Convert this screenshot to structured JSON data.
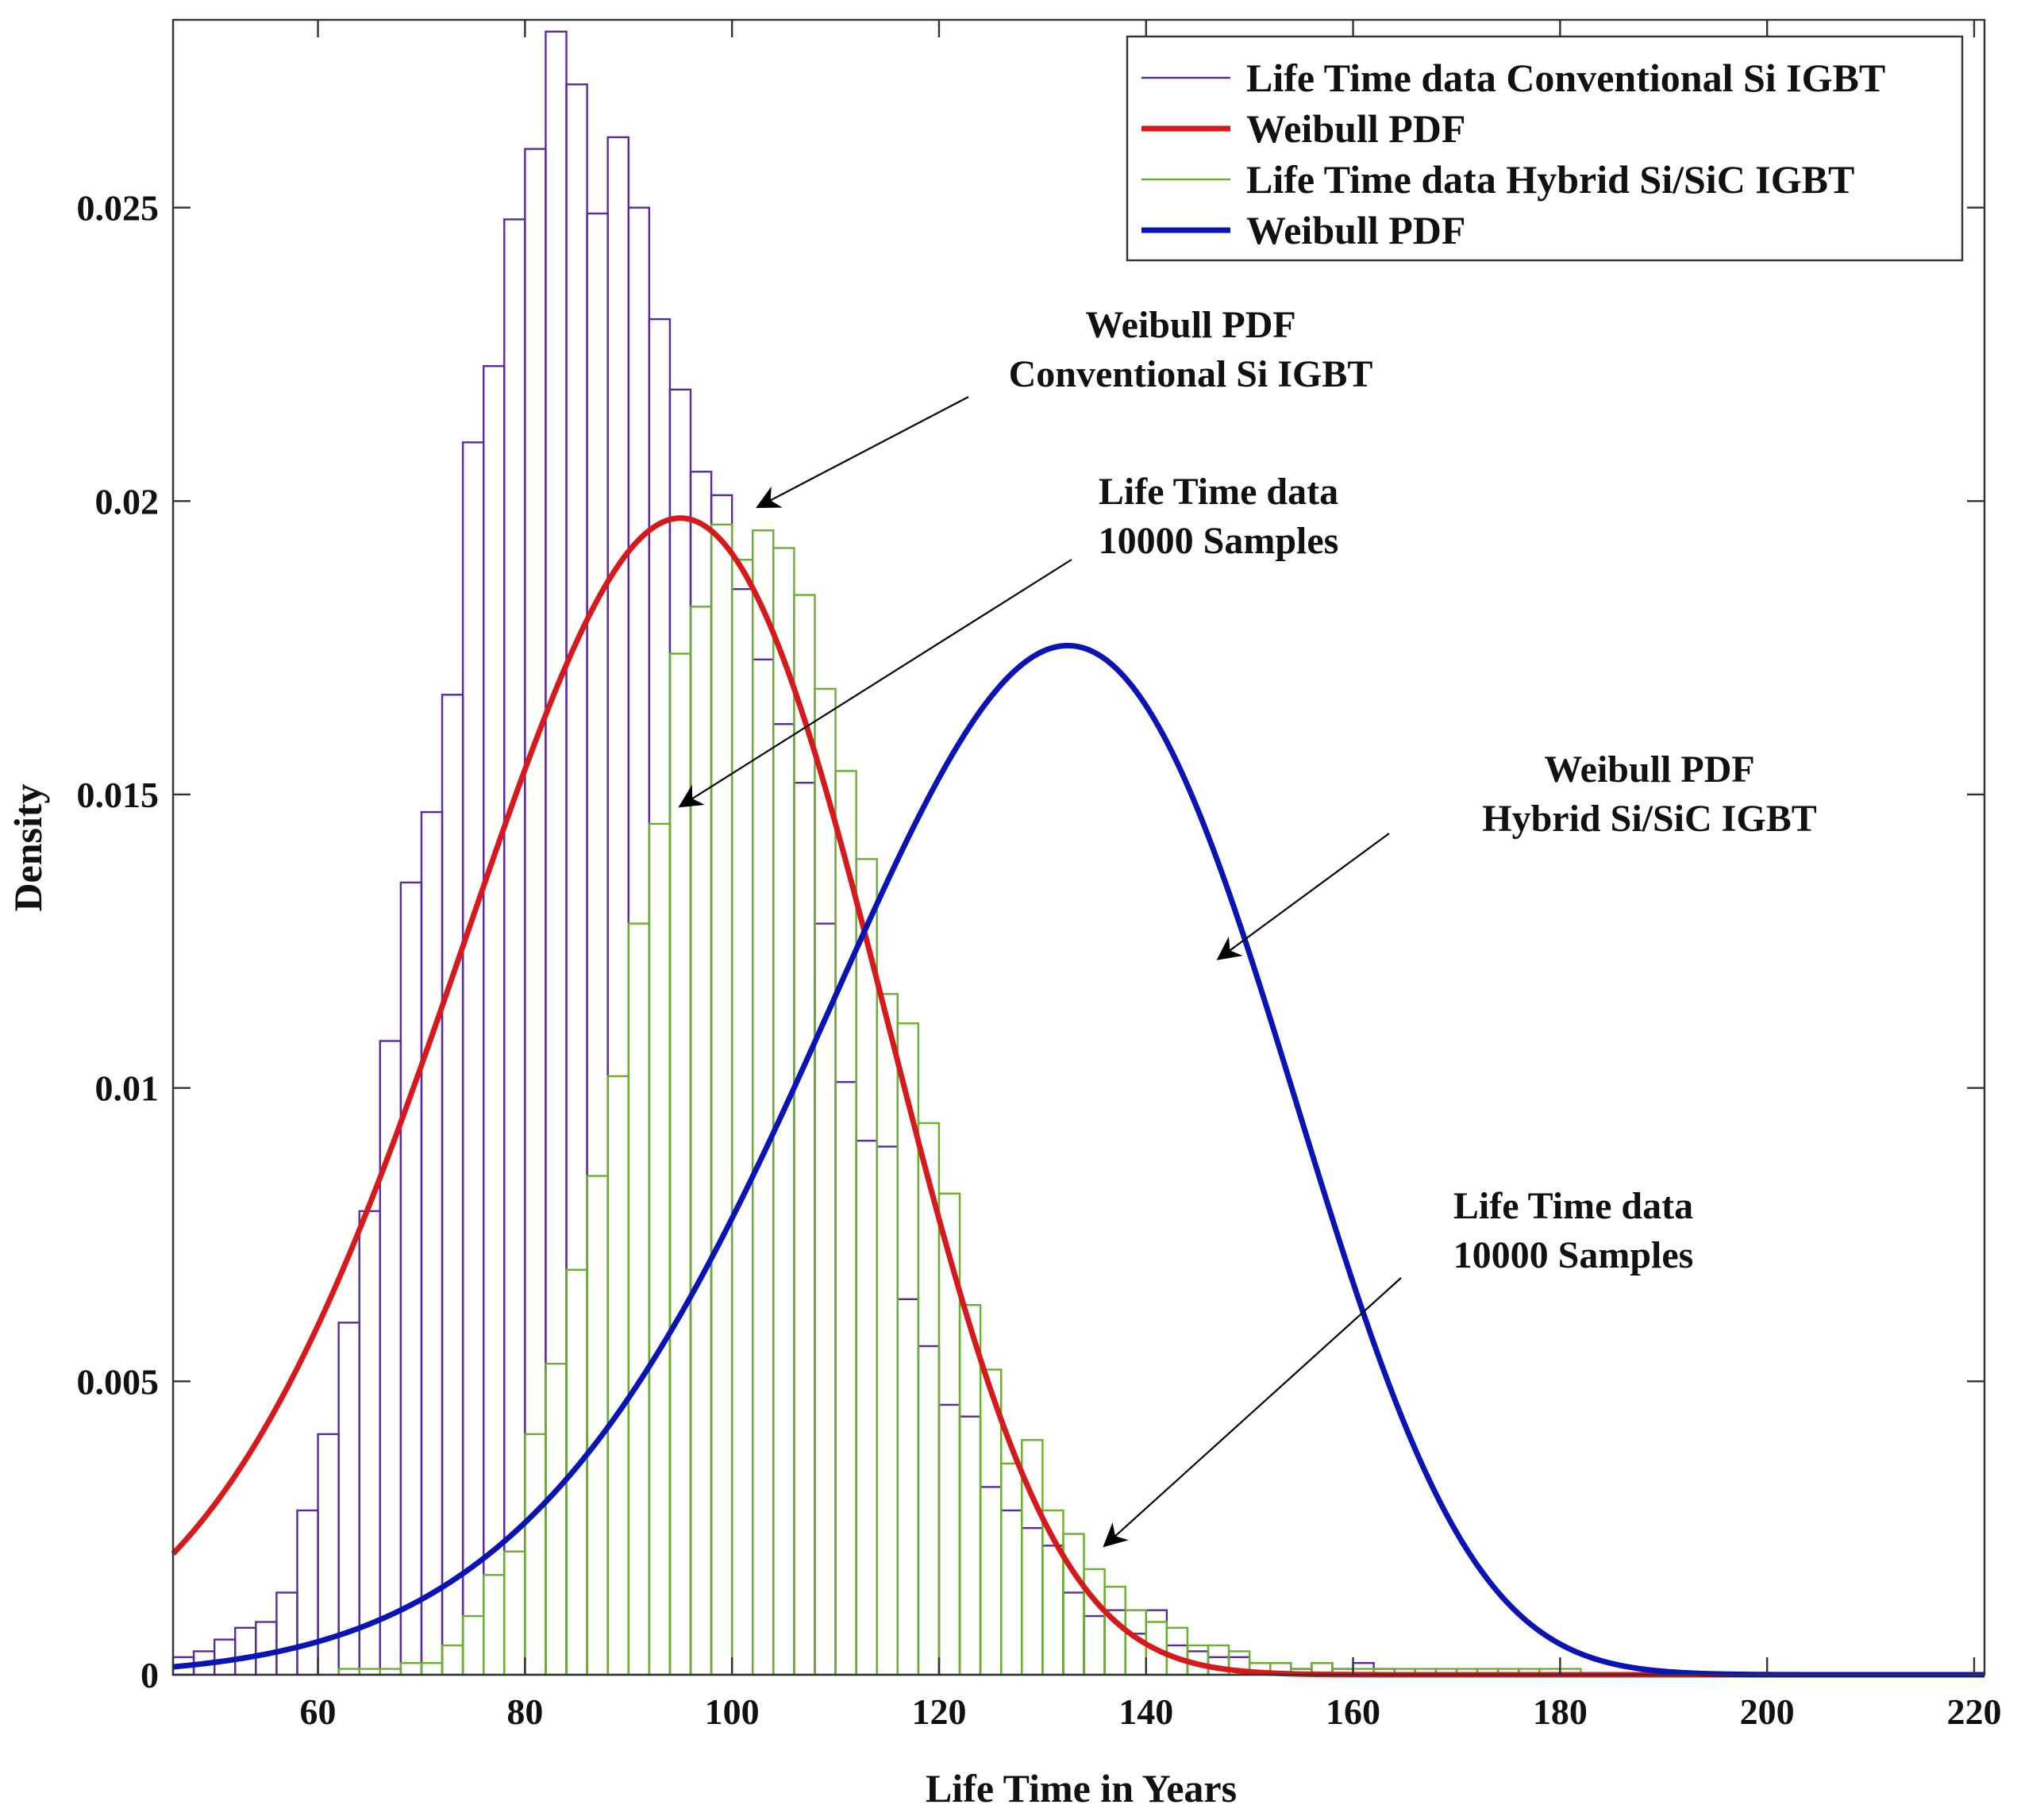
{
  "chart_data": {
    "type": "histogram",
    "title": "",
    "xlabel": "Life Time in Years",
    "ylabel": "Density",
    "xlim": [
      46,
      221
    ],
    "ylim": [
      0,
      0.0282
    ],
    "xticks": [
      "60",
      "80",
      "100",
      "120",
      "140",
      "160",
      "180",
      "200",
      "220"
    ],
    "xtick_values": [
      60,
      80,
      100,
      120,
      140,
      160,
      180,
      200,
      220
    ],
    "yticks": [
      "0",
      "0.005",
      "0.01",
      "0.015",
      "0.02",
      "0.025"
    ],
    "ytick_values": [
      0,
      0.005,
      0.01,
      0.015,
      0.02,
      0.025
    ],
    "bin_width": 2,
    "legend_position": "top-right",
    "series": [
      {
        "name": "Life Time data Conventional Si IGBT",
        "kind": "histogram",
        "color": "#5B2A9E",
        "bin_start": 46,
        "values": [
          0.0003,
          0.0004,
          0.0006,
          0.0008,
          0.0009,
          0.0014,
          0.0028,
          0.0041,
          0.006,
          0.0079,
          0.0108,
          0.0135,
          0.0147,
          0.0167,
          0.021,
          0.0223,
          0.0248,
          0.026,
          0.028,
          0.0271,
          0.0249,
          0.0262,
          0.025,
          0.0231,
          0.0219,
          0.0205,
          0.0201,
          0.0185,
          0.0173,
          0.0162,
          0.0152,
          0.0128,
          0.0101,
          0.0091,
          0.009,
          0.0064,
          0.0056,
          0.0046,
          0.0044,
          0.0032,
          0.0028,
          0.0025,
          0.0022,
          0.0014,
          0.001,
          0.0011,
          0.0007,
          0.0011,
          0.0005,
          0.0004,
          0.0003,
          0.0003,
          0.0002,
          0.0002,
          0.0001,
          0.0002,
          0.0001,
          0.0002,
          0.0001
        ]
      },
      {
        "name": "Weibull PDF",
        "kind": "line",
        "color": "#D7191C",
        "dist": "weibull",
        "scale": 99,
        "shape": 5.2
      },
      {
        "name": "Life Time data Hybrid Si/SiC IGBT",
        "kind": "histogram",
        "color": "#6AAF2D",
        "bin_start": 62,
        "values": [
          0.0001,
          0.0001,
          0.0001,
          0.0002,
          0.0002,
          0.0005,
          0.001,
          0.0017,
          0.0021,
          0.0041,
          0.0053,
          0.0069,
          0.0085,
          0.0102,
          0.0128,
          0.0145,
          0.0174,
          0.0182,
          0.0196,
          0.019,
          0.0195,
          0.0192,
          0.0184,
          0.0168,
          0.0154,
          0.0139,
          0.0116,
          0.0111,
          0.0094,
          0.0082,
          0.0063,
          0.0052,
          0.0036,
          0.004,
          0.0028,
          0.0024,
          0.0018,
          0.0015,
          0.0011,
          0.0009,
          0.0008,
          0.0005,
          0.0005,
          0.0004,
          0.0002,
          0.0002,
          0.0001,
          0.0002,
          0.0001,
          0.0001,
          0.0001,
          0.0001,
          0.0001,
          0.0001,
          0.0001,
          0.0001,
          0.0001,
          0.0001,
          0.0001,
          0.0001
        ]
      },
      {
        "name": "Weibull PDF",
        "kind": "line",
        "color": "#0A14B4",
        "dist": "weibull",
        "scale": 136,
        "shape": 6.4
      }
    ],
    "annotations": [
      {
        "lines": [
          "Weibull PDF",
          "Conventional Si IGBT"
        ],
        "target": [
          102.5,
          0.0199
        ]
      },
      {
        "lines": [
          "Life Time data",
          "10000 Samples"
        ],
        "target": [
          95,
          0.0148
        ]
      },
      {
        "lines": [
          "Weibull PDF",
          "Hybrid Si/SiC IGBT"
        ],
        "target": [
          147,
          0.0122
        ]
      },
      {
        "lines": [
          "Life Time data",
          "10000 Samples"
        ],
        "target": [
          136,
          0.0022
        ]
      }
    ]
  }
}
